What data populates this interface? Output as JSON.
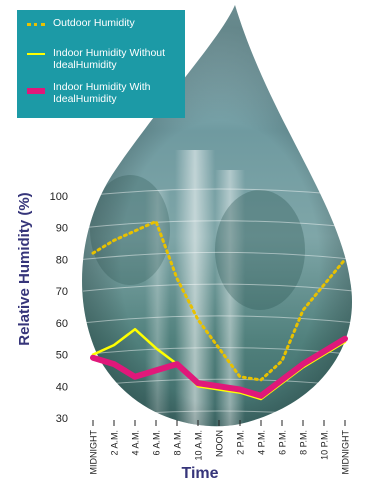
{
  "chart_data": {
    "type": "line",
    "xlabel": "Time",
    "ylabel": "Relative Humidity (%)",
    "ylim": [
      30,
      100
    ],
    "yticks": [
      30,
      40,
      50,
      60,
      70,
      80,
      90,
      100
    ],
    "grid": true,
    "legend_position": "top-left",
    "categories": [
      "MIDNIGHT",
      "2 A.M.",
      "4 A.M.",
      "6 A.M.",
      "8 A.M.",
      "10 A.M.",
      "NOON",
      "2 P.M.",
      "4 P.M.",
      "6 P.M.",
      "8 P.M.",
      "10 P.M.",
      "MIDNIGHT"
    ],
    "series": [
      {
        "name": "Outdoor Humidity",
        "style": "dotted",
        "color": "#e8c100",
        "values": [
          82,
          86,
          89,
          92,
          74,
          61,
          52,
          43,
          42,
          48,
          64,
          72,
          80
        ]
      },
      {
        "name": "Indoor Humidity Without IdealHumidity",
        "style": "solid-thin",
        "color": "#ffff00",
        "values": [
          50,
          53,
          58,
          52,
          47,
          40,
          39,
          38,
          36,
          41,
          46,
          50,
          54
        ]
      },
      {
        "name": "Indoor Humidity With IdealHumidity",
        "style": "solid-thick",
        "color": "#e0187a",
        "values": [
          49,
          47,
          43,
          45,
          47,
          41,
          40,
          39,
          37,
          42,
          47,
          51,
          55
        ]
      }
    ]
  },
  "colors": {
    "legend_background": "#1c9aa6",
    "axis_title": "#36357a",
    "drop_top": "#b8dfe6",
    "drop_bottom": "#3e6a68"
  }
}
